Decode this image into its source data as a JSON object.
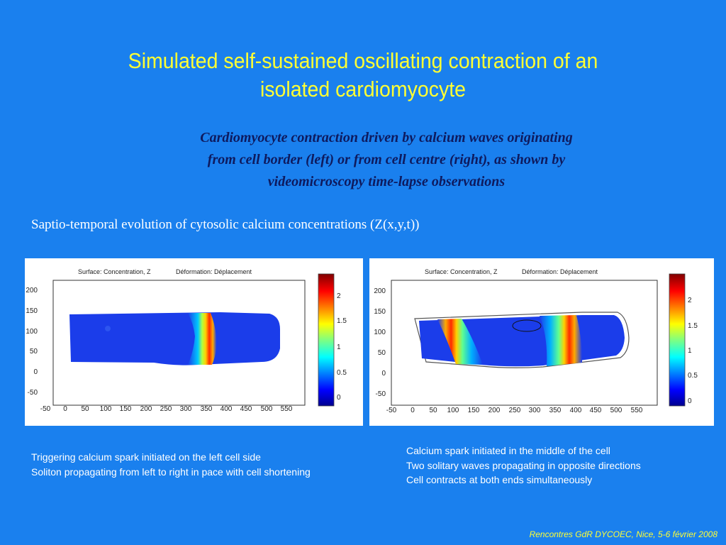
{
  "slide": {
    "title_line1": "Simulated self-sustained oscillating contraction of an",
    "title_line2": "isolated cardiomyocyte",
    "subtitle_line1": "Cardiomyocyte contraction driven by calcium waves originating",
    "subtitle_line2": "from cell border (left) or from cell centre (right), as shown by",
    "subtitle_line3": "videomicroscopy time-lapse observations",
    "section_label": "Saptio-temporal evolution of cytosolic calcium concentrations (Z(x,y,t))",
    "footer": "Rencontres GdR DYCOEC, Nice, 5-6 février 2008",
    "background_color": "#1a80ee",
    "title_color": "#ffff33"
  },
  "figures": {
    "left": {
      "plot_title_left": "Surface: Concentration, Z",
      "plot_title_right": "Déformation: Déplacement",
      "x_ticks": [
        "-50",
        "0",
        "50",
        "100",
        "150",
        "200",
        "250",
        "300",
        "350",
        "400",
        "450",
        "500",
        "550"
      ],
      "y_ticks": [
        "200",
        "150",
        "100",
        "50",
        "0",
        "-50"
      ],
      "colorbar_ticks": [
        "2",
        "1.5",
        "1",
        "0.5",
        "0"
      ],
      "caption_line1": "Triggering calcium spark initiated on the left cell side",
      "caption_line2": "Soliton propagating from left to right in pace with cell shortening"
    },
    "right": {
      "plot_title_left": "Surface: Concentration, Z",
      "plot_title_right": "Déformation: Déplacement",
      "x_ticks": [
        "-50",
        "0",
        "50",
        "100",
        "150",
        "200",
        "250",
        "300",
        "350",
        "400",
        "450",
        "500",
        "550"
      ],
      "y_ticks": [
        "200",
        "150",
        "100",
        "50",
        "0",
        "-50"
      ],
      "colorbar_ticks": [
        "2",
        "1.5",
        "1",
        "0.5",
        "0"
      ],
      "caption_line1": "Calcium spark initiated in the middle of the cell",
      "caption_line2": "Two solitary waves propagating in opposite directions",
      "caption_line3": "Cell contracts at both ends simultaneously"
    }
  }
}
